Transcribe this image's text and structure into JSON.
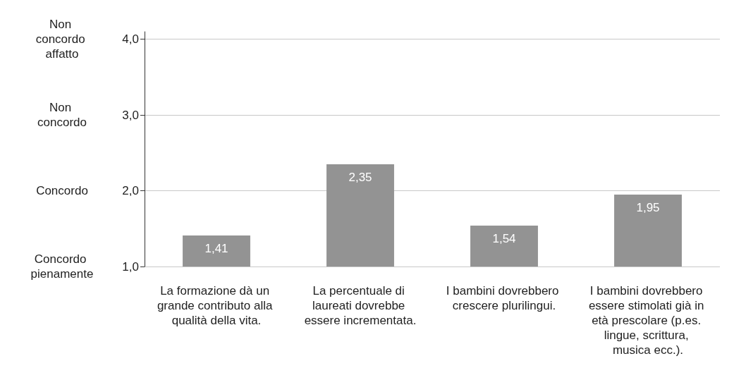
{
  "chart_data": {
    "type": "bar",
    "categories": [
      "La formazione dà un grande contributo alla qualità della vita.",
      "La percentuale di laureati dovrebbe essere incrementata.",
      "I bambini dovrebbero crescere plurilingui.",
      "I bambini dovrebbero essere stimolati già in età prescolare (p.es. lingue, scrittura, musica ecc.)."
    ],
    "values": [
      1.41,
      2.35,
      1.54,
      1.95
    ],
    "value_labels": [
      "1,41",
      "2,35",
      "1,54",
      "1,95"
    ],
    "color": "#939393",
    "ylim": [
      1,
      4.1
    ],
    "yticks": [
      {
        "value": 1,
        "label": "1,0"
      },
      {
        "value": 2,
        "label": "2,0"
      },
      {
        "value": 3,
        "label": "3,0"
      },
      {
        "value": 4,
        "label": "4,0"
      }
    ],
    "annotations": [
      "Concordo pienamente",
      "Concordo",
      "Non concordo",
      "Non concordo affatto"
    ],
    "grid": "y"
  }
}
